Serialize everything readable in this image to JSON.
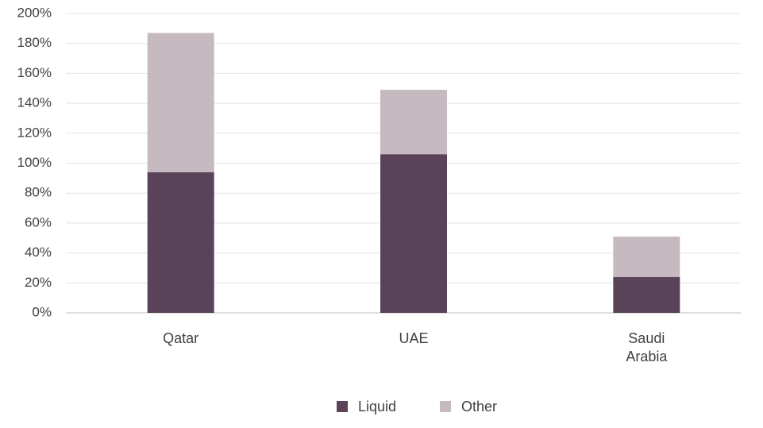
{
  "chart_data": {
    "type": "stacked-bar",
    "categories": [
      "Qatar",
      "UAE",
      "Saudi Arabia"
    ],
    "series": [
      {
        "name": "Liquid",
        "color": "#5a4358",
        "values": [
          94,
          106,
          24
        ]
      },
      {
        "name": "Other",
        "color": "#c6b9bf",
        "values": [
          93,
          43,
          27
        ]
      }
    ],
    "ylim": [
      0,
      200
    ],
    "yticks": [
      {
        "value": 0,
        "label": "0%"
      },
      {
        "value": 20,
        "label": "20%"
      },
      {
        "value": 40,
        "label": "40%"
      },
      {
        "value": 60,
        "label": "60%"
      },
      {
        "value": 80,
        "label": "80%"
      },
      {
        "value": 100,
        "label": "100%"
      },
      {
        "value": 120,
        "label": "120%"
      },
      {
        "value": 140,
        "label": "140%"
      },
      {
        "value": 160,
        "label": "160%"
      },
      {
        "value": 180,
        "label": "180%"
      },
      {
        "value": 200,
        "label": "200%"
      }
    ],
    "grid": true
  }
}
